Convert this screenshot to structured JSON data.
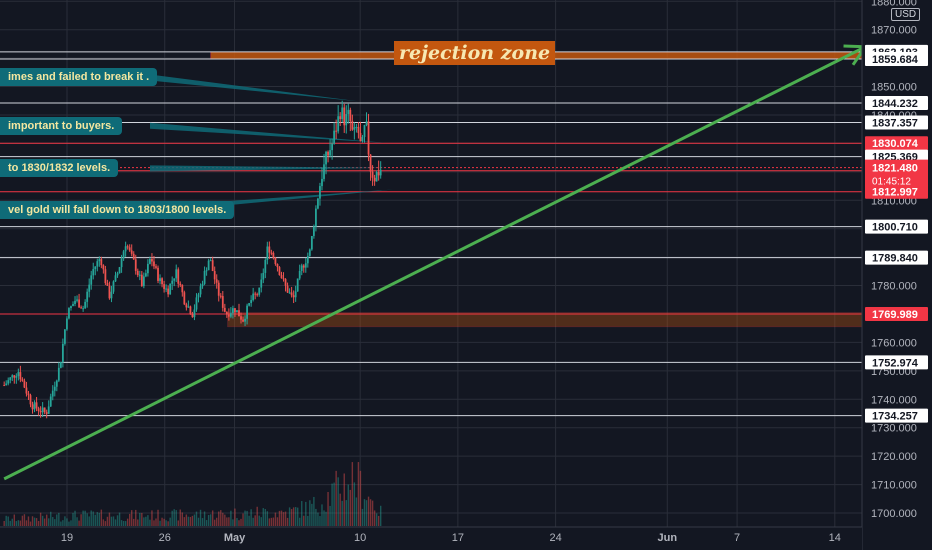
{
  "chart_data": {
    "type": "candlestick",
    "instrument_currency": "USD",
    "ylim": [
      1695,
      1880
    ],
    "y_ticks": [
      1700,
      1710,
      1720,
      1730,
      1740,
      1750,
      1760,
      1770,
      1780,
      1790,
      1800,
      1810,
      1820,
      1830,
      1840,
      1850,
      1860,
      1870,
      1880
    ],
    "y_tick_labels": [
      "1700.000",
      "1710.000",
      "1720.000",
      "1730.000",
      "1740.000",
      "1750.000",
      "1760.000",
      "1770.000",
      "1780.000",
      "1790.000",
      "1800.000",
      "1810.000",
      "1820.000",
      "1830.000",
      "1840.000",
      "1850.000",
      "1860.000",
      "1870.000",
      "1880.000"
    ],
    "x_ticks": [
      {
        "day": 19,
        "label": "19"
      },
      {
        "day": 26,
        "label": "26"
      },
      {
        "day": 31,
        "label": "May"
      },
      {
        "day": 40,
        "label": "10"
      },
      {
        "day": 47,
        "label": "17"
      },
      {
        "day": 54,
        "label": "24"
      },
      {
        "day": 62,
        "label": "Jun"
      },
      {
        "day": 67,
        "label": "7"
      },
      {
        "day": 74,
        "label": "14"
      }
    ],
    "x_range_days": [
      14.5,
      77
    ],
    "price_levels": [
      {
        "value": 1862.193,
        "label": "1862.193",
        "style": "white"
      },
      {
        "value": 1859.684,
        "label": "1859.684",
        "style": "white"
      },
      {
        "value": 1844.232,
        "label": "1844.232",
        "style": "white"
      },
      {
        "value": 1837.357,
        "label": "1837.357",
        "style": "white"
      },
      {
        "value": 1830.074,
        "label": "1830.074",
        "style": "red"
      },
      {
        "value": 1825.369,
        "label": "1825.369",
        "style": "white"
      },
      {
        "value": 1820.365,
        "label": "1820.365",
        "style": "red"
      },
      {
        "value": 1812.997,
        "label": "1812.997",
        "style": "red"
      },
      {
        "value": 1800.71,
        "label": "1800.710",
        "style": "white"
      },
      {
        "value": 1789.84,
        "label": "1789.840",
        "style": "white"
      },
      {
        "value": 1769.989,
        "label": "1769.989",
        "style": "red"
      },
      {
        "value": 1752.974,
        "label": "1752.974",
        "style": "white"
      },
      {
        "value": 1734.257,
        "label": "1734.257",
        "style": "white"
      }
    ],
    "current_price": {
      "value": 1821.48,
      "label": "1821.480",
      "countdown": "01:45:12"
    },
    "zones": [
      {
        "from": 1859.684,
        "to": 1862.193,
        "start_day": 29.3,
        "label": "rejection zone"
      },
      {
        "from": 1765.5,
        "to": 1770.5,
        "start_day": 30.5,
        "label": ""
      }
    ],
    "trendline": {
      "points": [
        [
          14.5,
          1712
        ],
        [
          76.2,
          1864
        ]
      ],
      "arrow": true
    },
    "anchor": {
      "day": 39.1,
      "value": 1823.5
    },
    "candles_keyframes": [
      [
        14.5,
        1745
      ],
      [
        15.5,
        1750
      ],
      [
        16.5,
        1738
      ],
      [
        17.5,
        1735
      ],
      [
        18.5,
        1752
      ],
      [
        19.0,
        1770
      ],
      [
        19.6,
        1775
      ],
      [
        20.2,
        1772
      ],
      [
        20.8,
        1785
      ],
      [
        21.4,
        1790
      ],
      [
        22.0,
        1776
      ],
      [
        22.6,
        1784
      ],
      [
        23.2,
        1795
      ],
      [
        23.8,
        1788
      ],
      [
        24.4,
        1780
      ],
      [
        25.0,
        1790
      ],
      [
        25.6,
        1782
      ],
      [
        26.2,
        1778
      ],
      [
        26.8,
        1785
      ],
      [
        27.4,
        1775
      ],
      [
        28.0,
        1770
      ],
      [
        28.6,
        1780
      ],
      [
        29.2,
        1790
      ],
      [
        29.8,
        1778
      ],
      [
        30.4,
        1770
      ],
      [
        31.0,
        1772
      ],
      [
        31.6,
        1768
      ],
      [
        32.2,
        1775
      ],
      [
        32.8,
        1778
      ],
      [
        33.4,
        1794
      ],
      [
        34.0,
        1788
      ],
      [
        34.6,
        1780
      ],
      [
        35.2,
        1775
      ],
      [
        35.8,
        1786
      ],
      [
        36.4,
        1792
      ],
      [
        36.8,
        1806
      ],
      [
        37.2,
        1818
      ],
      [
        37.6,
        1825
      ],
      [
        38.0,
        1830
      ],
      [
        38.3,
        1836
      ],
      [
        38.6,
        1842
      ],
      [
        38.9,
        1838
      ],
      [
        39.2,
        1840
      ],
      [
        39.5,
        1832
      ],
      [
        39.8,
        1836
      ],
      [
        40.1,
        1827
      ],
      [
        40.4,
        1838
      ],
      [
        40.7,
        1822
      ],
      [
        41.0,
        1818
      ],
      [
        41.3,
        1820
      ],
      [
        41.6,
        1821.5
      ]
    ],
    "volume_levels": [
      [
        14.5,
        4
      ],
      [
        20,
        6
      ],
      [
        26,
        6
      ],
      [
        31,
        7
      ],
      [
        35,
        8
      ],
      [
        37,
        12
      ],
      [
        38.5,
        22
      ],
      [
        39.5,
        28
      ],
      [
        40.5,
        18
      ],
      [
        41.6,
        6
      ]
    ]
  },
  "annotations": [
    {
      "name": "callout-failed-break",
      "text": "imes and failed to break it .",
      "day": 14.5,
      "value": 1853.2
    },
    {
      "name": "callout-important-buyers",
      "text": " important to buyers.",
      "day": 14.5,
      "value": 1836.2
    },
    {
      "name": "callout-levels",
      "text": " to 1830/1832 levels.",
      "day": 14.5,
      "value": 1821.2
    },
    {
      "name": "callout-fall-down",
      "text": "vel gold will fall down to 1803/1800 levels.",
      "day": 14.5,
      "value": 1806.7
    }
  ],
  "colors": {
    "background": "#131722",
    "grid": "#2a2e39",
    "bull": "#26a69a",
    "bear": "#ef5350",
    "trend": "#4caf50",
    "level_red": "#f23645",
    "zone": "#c3570f",
    "callout_bg": "#0f6b78",
    "callout_text": "#f4e7a0"
  }
}
